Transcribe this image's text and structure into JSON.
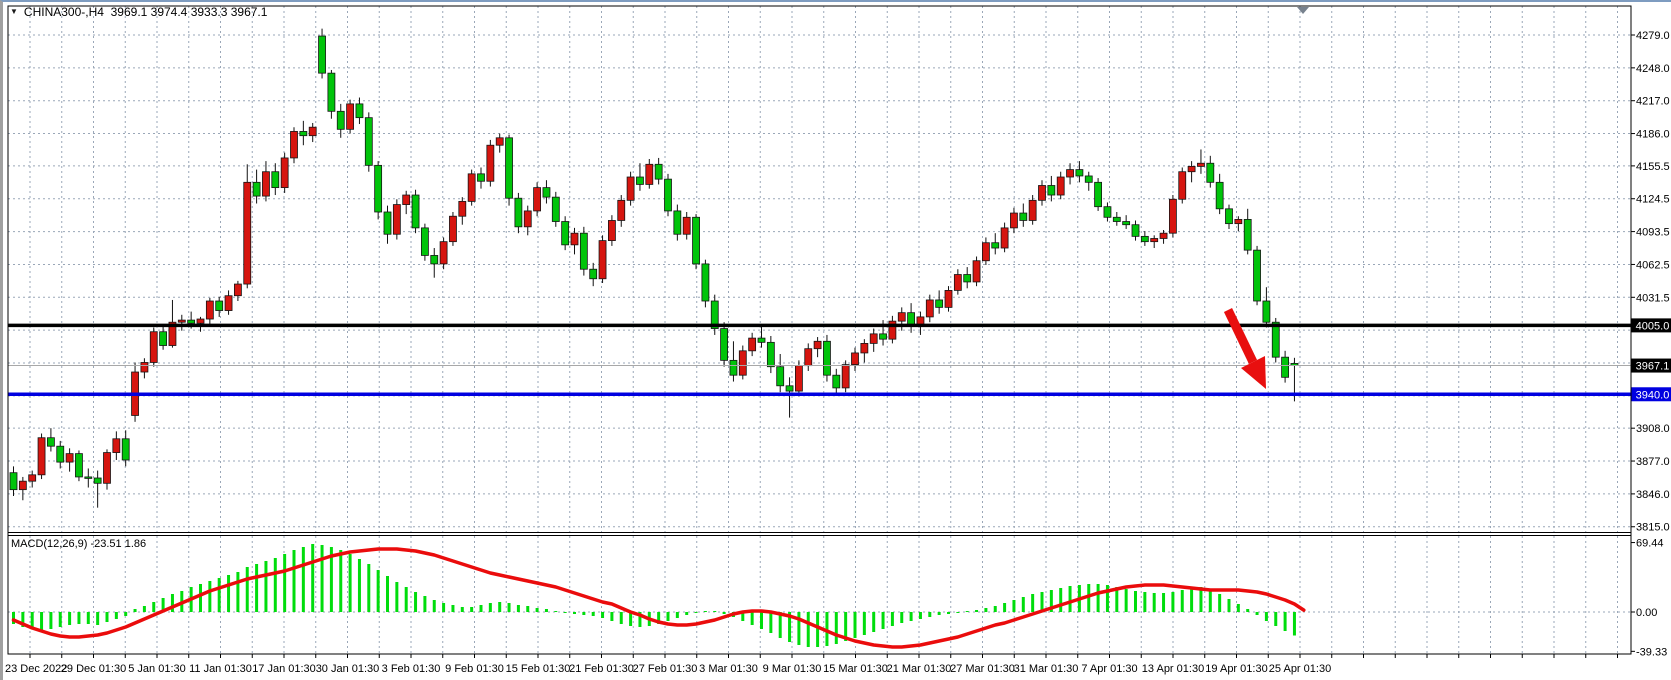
{
  "window": {
    "title": "CHINA300-,H4  3969.1 3974.4 3933.3 3967.1",
    "symbol": "CHINA300-",
    "timeframe": "H4"
  },
  "indicator": {
    "label": "MACD(12,26,9) -23.51 1.86"
  },
  "chart_data": {
    "type": "candlestick",
    "symbol": "CHINA300",
    "timeframe": "H4",
    "last_bar": {
      "open": 3969.1,
      "high": 3974.4,
      "low": 3933.3,
      "close": 3967.1
    },
    "price_axis": {
      "levels": [
        {
          "price": 4279.0,
          "label": "4279.0"
        },
        {
          "price": 4248.0,
          "label": "4248.0"
        },
        {
          "price": 4217.0,
          "label": "4217.0"
        },
        {
          "price": 4186.0,
          "label": "4186.0"
        },
        {
          "price": 4155.5,
          "label": "4155.5"
        },
        {
          "price": 4124.5,
          "label": "4124.5"
        },
        {
          "price": 4093.5,
          "label": "4093.5"
        },
        {
          "price": 4062.5,
          "label": "4062.5"
        },
        {
          "price": 4031.5,
          "label": "4031.5"
        },
        {
          "price": 4000.5,
          "label": ""
        },
        {
          "price": 3969.5,
          "label": ""
        },
        {
          "price": 3938.5,
          "label": ""
        },
        {
          "price": 3908.0,
          "label": "3908.0"
        },
        {
          "price": 3877.0,
          "label": "3877.0"
        },
        {
          "price": 3846.0,
          "label": "3846.0"
        },
        {
          "price": 3815.0,
          "label": "3815.0"
        }
      ]
    },
    "time_axis": [
      "23 Dec 2022",
      "29 Dec 01:30",
      "5 Jan 01:30",
      "11 Jan 01:30",
      "17 Jan 01:30",
      "30 Jan 01:30",
      "3 Feb 01:30",
      "9 Feb 01:30",
      "15 Feb 01:30",
      "21 Feb 01:30",
      "27 Feb 01:30",
      "3 Mar 01:30",
      "9 Mar 01:30",
      "15 Mar 01:30",
      "21 Mar 01:30",
      "27 Mar 01:30",
      "31 Mar 01:30",
      "7 Apr 01:30",
      "13 Apr 01:30",
      "19 Apr 01:30",
      "25 Apr 01:30"
    ],
    "hlines": [
      {
        "price": 4005.0,
        "badge": "4005.0",
        "color": "#000000",
        "width": 3.5
      },
      {
        "price": 3940.0,
        "badge": "3940.0",
        "color": "#0000e0",
        "width": 3.5
      }
    ],
    "current_price": {
      "value": 3967.1,
      "badge": "3967.1",
      "line_color": "#a8a8a8",
      "badge_color": "#000000"
    },
    "colors": {
      "bull_body": "#d6150f",
      "bear_body": "#00c40a",
      "wick": "#111111",
      "grid": "#9aa7b8",
      "macd_bar": "#00dd0c",
      "macd_signal": "#ea0c0c",
      "arrow": "#e80f0f",
      "background": "#ffffff"
    },
    "candles": [
      [
        3866,
        3872,
        3844,
        3850
      ],
      [
        3850,
        3862,
        3840,
        3858
      ],
      [
        3858,
        3868,
        3852,
        3864
      ],
      [
        3864,
        3903,
        3860,
        3899
      ],
      [
        3899,
        3908,
        3886,
        3891
      ],
      [
        3891,
        3896,
        3870,
        3876
      ],
      [
        3876,
        3889,
        3867,
        3884
      ],
      [
        3884,
        3887,
        3858,
        3862
      ],
      [
        3862,
        3870,
        3852,
        3861
      ],
      [
        3861,
        3868,
        3833,
        3856
      ],
      [
        3856,
        3888,
        3850,
        3885
      ],
      [
        3885,
        3905,
        3878,
        3898
      ],
      [
        3898,
        3906,
        3872,
        3878
      ],
      [
        3920,
        3970,
        3914,
        3961
      ],
      [
        3961,
        3974,
        3955,
        3970
      ],
      [
        3970,
        4003,
        3966,
        3999
      ],
      [
        3999,
        4004,
        3982,
        3986
      ],
      [
        3986,
        4029,
        3984,
        4008
      ],
      [
        4008,
        4015,
        4000,
        4010
      ],
      [
        4010,
        4018,
        4002,
        4007
      ],
      [
        4007,
        4013,
        3999,
        4011
      ],
      [
        4011,
        4031,
        4006,
        4028
      ],
      [
        4028,
        4032,
        4013,
        4019
      ],
      [
        4019,
        4038,
        4015,
        4033
      ],
      [
        4033,
        4047,
        4028,
        4044
      ],
      [
        4044,
        4157,
        4040,
        4140
      ],
      [
        4140,
        4152,
        4120,
        4127
      ],
      [
        4127,
        4160,
        4122,
        4150
      ],
      [
        4150,
        4158,
        4128,
        4135
      ],
      [
        4135,
        4168,
        4130,
        4163
      ],
      [
        4163,
        4192,
        4158,
        4188
      ],
      [
        4188,
        4198,
        4175,
        4184
      ],
      [
        4184,
        4196,
        4178,
        4192
      ],
      [
        4278,
        4285,
        4238,
        4243
      ],
      [
        4243,
        4246,
        4200,
        4207
      ],
      [
        4207,
        4214,
        4182,
        4190
      ],
      [
        4190,
        4218,
        4186,
        4214
      ],
      [
        4214,
        4220,
        4195,
        4201
      ],
      [
        4201,
        4206,
        4150,
        4156
      ],
      [
        4156,
        4160,
        4105,
        4112
      ],
      [
        4112,
        4118,
        4082,
        4091
      ],
      [
        4091,
        4124,
        4086,
        4119
      ],
      [
        4119,
        4132,
        4110,
        4128
      ],
      [
        4128,
        4133,
        4092,
        4097
      ],
      [
        4097,
        4101,
        4066,
        4071
      ],
      [
        4071,
        4078,
        4050,
        4063
      ],
      [
        4063,
        4088,
        4058,
        4084
      ],
      [
        4084,
        4112,
        4080,
        4108
      ],
      [
        4108,
        4126,
        4100,
        4122
      ],
      [
        4122,
        4152,
        4118,
        4148
      ],
      [
        4148,
        4154,
        4134,
        4141
      ],
      [
        4141,
        4180,
        4136,
        4175
      ],
      [
        4175,
        4186,
        4168,
        4182
      ],
      [
        4182,
        4185,
        4118,
        4125
      ],
      [
        4125,
        4130,
        4092,
        4098
      ],
      [
        4098,
        4118,
        4090,
        4113
      ],
      [
        4113,
        4140,
        4108,
        4135
      ],
      [
        4135,
        4142,
        4120,
        4126
      ],
      [
        4126,
        4131,
        4098,
        4103
      ],
      [
        4103,
        4108,
        4076,
        4081
      ],
      [
        4081,
        4097,
        4072,
        4092
      ],
      [
        4092,
        4098,
        4052,
        4058
      ],
      [
        4058,
        4064,
        4042,
        4049
      ],
      [
        4049,
        4090,
        4045,
        4085
      ],
      [
        4085,
        4109,
        4080,
        4104
      ],
      [
        4104,
        4128,
        4098,
        4123
      ],
      [
        4123,
        4150,
        4118,
        4145
      ],
      [
        4145,
        4158,
        4132,
        4138
      ],
      [
        4138,
        4162,
        4134,
        4157
      ],
      [
        4157,
        4163,
        4138,
        4143
      ],
      [
        4143,
        4148,
        4108,
        4113
      ],
      [
        4113,
        4119,
        4085,
        4091
      ],
      [
        4091,
        4112,
        4086,
        4107
      ],
      [
        4107,
        4110,
        4058,
        4063
      ],
      [
        4063,
        4067,
        4022,
        4028
      ],
      [
        4028,
        4034,
        3996,
        4002
      ],
      [
        4002,
        4008,
        3966,
        3972
      ],
      [
        3972,
        3990,
        3952,
        3958
      ],
      [
        3958,
        3986,
        3954,
        3981
      ],
      [
        3981,
        3998,
        3976,
        3993
      ],
      [
        3993,
        4004,
        3984,
        3989
      ],
      [
        3989,
        3995,
        3960,
        3966
      ],
      [
        3966,
        3978,
        3942,
        3948
      ],
      [
        3948,
        3956,
        3918,
        3943
      ],
      [
        3943,
        3972,
        3938,
        3967
      ],
      [
        3967,
        3988,
        3962,
        3983
      ],
      [
        3983,
        3994,
        3975,
        3990
      ],
      [
        3990,
        3996,
        3952,
        3958
      ],
      [
        3958,
        3964,
        3940,
        3946
      ],
      [
        3946,
        3972,
        3942,
        3968
      ],
      [
        3968,
        3984,
        3962,
        3979
      ],
      [
        3979,
        3992,
        3970,
        3988
      ],
      [
        3988,
        4002,
        3980,
        3997
      ],
      [
        3997,
        4010,
        3986,
        3992
      ],
      [
        3992,
        4014,
        3988,
        4009
      ],
      [
        4009,
        4022,
        4000,
        4017
      ],
      [
        4017,
        4026,
        3998,
        4004
      ],
      [
        4004,
        4018,
        3996,
        4013
      ],
      [
        4013,
        4034,
        4008,
        4029
      ],
      [
        4029,
        4038,
        4016,
        4022
      ],
      [
        4022,
        4042,
        4018,
        4038
      ],
      [
        4038,
        4058,
        4034,
        4053
      ],
      [
        4053,
        4060,
        4040,
        4046
      ],
      [
        4046,
        4070,
        4042,
        4066
      ],
      [
        4066,
        4088,
        4062,
        4083
      ],
      [
        4083,
        4092,
        4072,
        4078
      ],
      [
        4078,
        4102,
        4074,
        4097
      ],
      [
        4097,
        4116,
        4092,
        4111
      ],
      [
        4111,
        4120,
        4098,
        4104
      ],
      [
        4104,
        4128,
        4100,
        4123
      ],
      [
        4123,
        4142,
        4118,
        4137
      ],
      [
        4137,
        4146,
        4122,
        4128
      ],
      [
        4128,
        4150,
        4124,
        4145
      ],
      [
        4145,
        4158,
        4138,
        4152
      ],
      [
        4152,
        4160,
        4140,
        4146
      ],
      [
        4146,
        4150,
        4132,
        4140
      ],
      [
        4140,
        4144,
        4113,
        4117
      ],
      [
        4117,
        4121,
        4103,
        4107
      ],
      [
        4107,
        4112,
        4099,
        4103
      ],
      [
        4103,
        4109,
        4096,
        4100
      ],
      [
        4100,
        4104,
        4085,
        4089
      ],
      [
        4089,
        4094,
        4080,
        4084
      ],
      [
        4084,
        4090,
        4078,
        4087
      ],
      [
        4087,
        4095,
        4082,
        4092
      ],
      [
        4092,
        4128,
        4088,
        4124
      ],
      [
        4124,
        4154,
        4120,
        4150
      ],
      [
        4150,
        4160,
        4140,
        4155
      ],
      [
        4155,
        4171,
        4148,
        4158
      ],
      [
        4158,
        4165,
        4135,
        4140
      ],
      [
        4140,
        4148,
        4110,
        4115
      ],
      [
        4115,
        4119,
        4096,
        4101
      ],
      [
        4101,
        4108,
        4094,
        4105
      ],
      [
        4105,
        4115,
        4072,
        4076
      ],
      [
        4076,
        4080,
        4024,
        4028
      ],
      [
        4028,
        4041,
        4003,
        4008
      ],
      [
        4008,
        4012,
        3970,
        3975
      ],
      [
        3975,
        3981,
        3951,
        3956
      ],
      [
        3969.1,
        3974.4,
        3933.3,
        3967.1
      ]
    ],
    "macd": {
      "params": "12,26,9",
      "current_macd": -23.51,
      "current_signal": 1.86,
      "axis_labels": [
        {
          "value": 69.44,
          "label": "69.44"
        },
        {
          "value": 0.0,
          "label": "0.00"
        },
        {
          "value": -39.33,
          "label": "-39.33"
        }
      ],
      "histogram": [
        -12,
        -15,
        -17,
        -18,
        -17,
        -15,
        -13,
        -12,
        -12,
        -13,
        -10,
        -7,
        -4,
        3,
        6,
        10,
        14,
        18,
        21,
        25,
        28,
        31,
        34,
        37,
        40,
        45,
        48,
        51,
        54,
        58,
        62,
        65,
        68,
        67,
        65,
        62,
        58,
        53,
        48,
        42,
        36,
        30,
        25,
        20,
        16,
        12,
        9,
        7,
        5,
        5,
        7,
        9,
        10,
        9,
        7,
        6,
        4,
        3,
        1,
        -1,
        -2,
        -3,
        -4,
        -6,
        -9,
        -12,
        -14,
        -15,
        -14,
        -12,
        -9,
        -6,
        -3,
        -1,
        1,
        1,
        -2,
        -5,
        -9,
        -13,
        -17,
        -21,
        -26,
        -30,
        -33,
        -35,
        -35,
        -34,
        -32,
        -29,
        -26,
        -23,
        -20,
        -17,
        -14,
        -11,
        -9,
        -7,
        -5,
        -3,
        -2,
        -1,
        1,
        2,
        4,
        6,
        9,
        12,
        15,
        18,
        20,
        22,
        24,
        26,
        27,
        28,
        28,
        27,
        25,
        23,
        21,
        20,
        19,
        19,
        20,
        22,
        24,
        25,
        22,
        18,
        13,
        8,
        3,
        -3,
        -9,
        -14,
        -19,
        -23.5
      ],
      "signal_line": [
        -8,
        -12,
        -16,
        -19,
        -22,
        -24,
        -25,
        -25,
        -24,
        -23,
        -21,
        -18,
        -15,
        -11,
        -7,
        -3,
        1,
        5,
        9,
        13,
        17,
        21,
        24,
        27,
        30,
        33,
        35,
        37,
        39,
        41,
        44,
        47,
        50,
        53,
        56,
        58,
        60,
        61,
        62,
        63,
        63,
        63,
        62,
        61,
        59,
        57,
        54,
        51,
        48,
        45,
        42,
        39,
        37,
        35,
        33,
        31,
        29,
        27,
        25,
        22,
        19,
        16,
        13,
        10,
        8,
        4,
        0,
        -3,
        -7,
        -10,
        -12,
        -13,
        -13,
        -12,
        -10,
        -8,
        -5,
        -2,
        0,
        1,
        1,
        0,
        -2,
        -4,
        -7,
        -11,
        -15,
        -19,
        -23,
        -26,
        -29,
        -31,
        -33,
        -34,
        -35,
        -35,
        -34,
        -33,
        -31,
        -29,
        -27,
        -25,
        -22,
        -19,
        -16,
        -13,
        -11,
        -8,
        -5,
        -2,
        1,
        4,
        7,
        10,
        13,
        16,
        19,
        21,
        23,
        25,
        26,
        27,
        27,
        27,
        26,
        25,
        24,
        23,
        22,
        22,
        22,
        22,
        21,
        20,
        18,
        15,
        12,
        8,
        1.86
      ]
    },
    "annotations": {
      "arrow": {
        "description": "red down-right arrow from black line toward blue line",
        "color": "#e80f0f"
      }
    }
  }
}
